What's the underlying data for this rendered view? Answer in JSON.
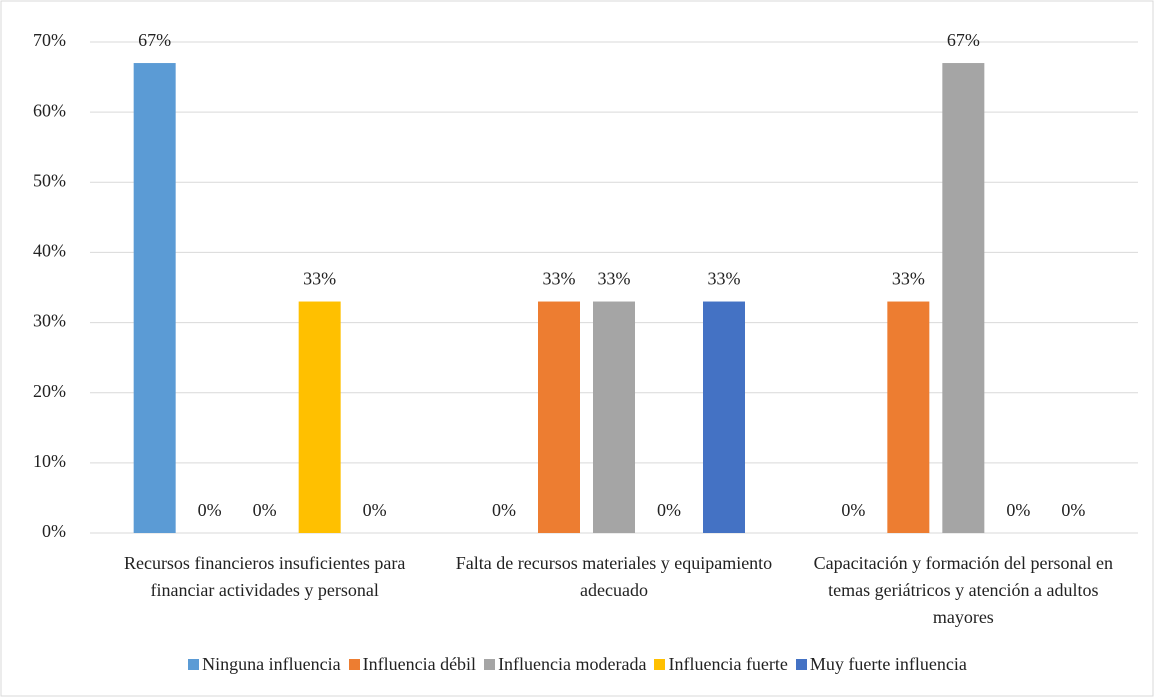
{
  "chart_data": {
    "type": "bar",
    "categories": [
      "Recursos financieros insuficientes para financiar actividades y personal",
      "Falta de recursos materiales y equipamiento adecuado",
      "Capacitación y formación del personal en temas geriátricos y atención a adultos mayores"
    ],
    "series": [
      {
        "name": "Ninguna influencia",
        "color": "#5b9bd5",
        "values": [
          67,
          0,
          0
        ],
        "value_labels": [
          "67%",
          "0%",
          "0%"
        ]
      },
      {
        "name": "Influencia débil",
        "color": "#ed7d31",
        "values": [
          0,
          33,
          33
        ],
        "value_labels": [
          "0%",
          "33%",
          "33%"
        ]
      },
      {
        "name": "Influencia moderada",
        "color": "#a5a5a5",
        "values": [
          0,
          33,
          67
        ],
        "value_labels": [
          "0%",
          "33%",
          "67%"
        ]
      },
      {
        "name": "Influencia fuerte",
        "color": "#ffc000",
        "values": [
          33,
          0,
          0
        ],
        "value_labels": [
          "33%",
          "0%",
          "0%"
        ]
      },
      {
        "name": "Muy fuerte influencia",
        "color": "#4472c4",
        "values": [
          0,
          33,
          0
        ],
        "value_labels": [
          "0%",
          "33%",
          "0%"
        ]
      }
    ],
    "ylim": [
      0,
      70
    ],
    "yticks": [
      {
        "value": 0,
        "label": "0%"
      },
      {
        "value": 10,
        "label": "10%"
      },
      {
        "value": 20,
        "label": "20%"
      },
      {
        "value": 30,
        "label": "30%"
      },
      {
        "value": 40,
        "label": "40%"
      },
      {
        "value": 50,
        "label": "50%"
      },
      {
        "value": 60,
        "label": "60%"
      },
      {
        "value": 70,
        "label": "70%"
      }
    ],
    "grid": true,
    "legend": "bottom"
  }
}
